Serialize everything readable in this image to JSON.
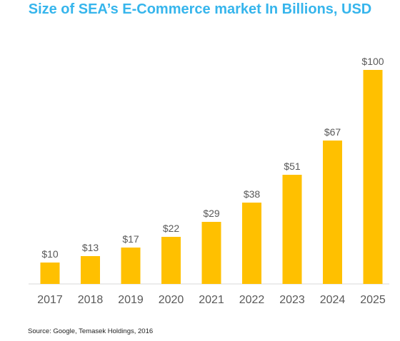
{
  "chart_data": {
    "type": "bar",
    "title": "Size of SEA’s E-Commerce market In Billions, USD",
    "categories": [
      "2017",
      "2018",
      "2019",
      "2020",
      "2021",
      "2022",
      "2023",
      "2024",
      "2025"
    ],
    "values": [
      10,
      13,
      17,
      22,
      29,
      38,
      51,
      67,
      100
    ],
    "data_labels": [
      "$10",
      "$13",
      "$17",
      "$22",
      "$29",
      "$38",
      "$51",
      "$67",
      "$100"
    ],
    "xlabel": "",
    "ylabel": "",
    "ylim": [
      0,
      100
    ],
    "grid": false,
    "legend": "none",
    "bar_color": "#ffc000",
    "title_color": "#36b5ec"
  },
  "source_note": "Source: Google, Temasek Holdings, 2016"
}
